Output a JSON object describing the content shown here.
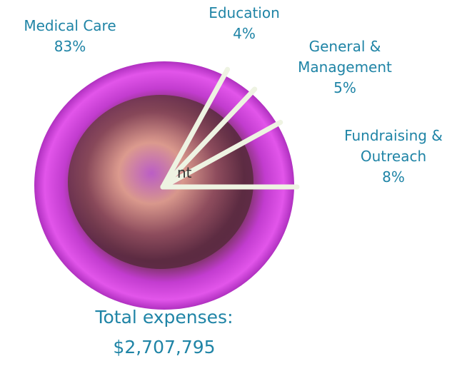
{
  "chart_data": {
    "type": "pie",
    "categories": [
      "Medical Care",
      "Education",
      "General & Management",
      "Fundraising & Outreach"
    ],
    "values": [
      83,
      4,
      5,
      8
    ],
    "value_labels": [
      "83%",
      "4%",
      "5%",
      "8%"
    ],
    "line_color": "#eef3e2",
    "label_color": "#1f84a6",
    "annotations": [
      "Total expenses:",
      "$2,707,795",
      "nt"
    ]
  }
}
